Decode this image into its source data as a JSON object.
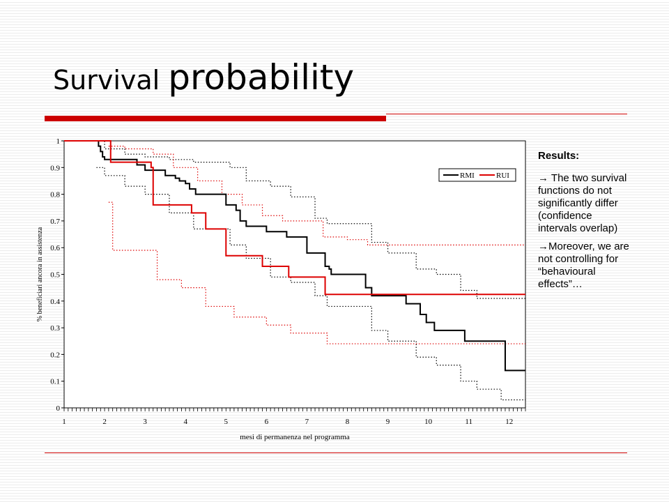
{
  "title": {
    "part1": "Surviva",
    "part2": "l ",
    "part3": "probability"
  },
  "side_notes": {
    "heading": "Results:",
    "items": [
      {
        "arrow": "→",
        "text": "The two survival functions do not significantly differ (confidence intervals overlap)"
      },
      {
        "arrow": "→",
        "text": "Moreover, we are not controlling for “behavioural effects”…"
      }
    ]
  },
  "colors": {
    "accent": "#cc0000",
    "rmi": "#000000",
    "rui": "#dd0000"
  },
  "chart_data": {
    "type": "line",
    "step": true,
    "xlabel": "mesi di permanenza nel programma",
    "ylabel": "% beneficiari ancora in assistenza",
    "xlim": [
      1,
      12.4
    ],
    "ylim": [
      0,
      1
    ],
    "xticks": [
      1,
      2,
      3,
      4,
      5,
      6,
      7,
      8,
      9,
      10,
      11,
      12
    ],
    "yticks": [
      0,
      0.1,
      0.2,
      0.3,
      0.4,
      0.5,
      0.6,
      0.7,
      0.8,
      0.9,
      1
    ],
    "legend": {
      "position": "top-right",
      "entries": [
        "RMI",
        "RUI"
      ]
    },
    "series": [
      {
        "name": "RMI",
        "color": "#000000",
        "style": "solid",
        "x": [
          1,
          1.8,
          1.85,
          1.9,
          1.95,
          2.0,
          2.05,
          2.1,
          2.2,
          2.3,
          2.5,
          2.8,
          3.0,
          3.3,
          3.5,
          3.65,
          3.75,
          3.85,
          4.0,
          4.1,
          4.25,
          4.6,
          5.0,
          5.25,
          5.35,
          5.5,
          6.0,
          6.5,
          6.65,
          7.0,
          7.35,
          7.45,
          7.5,
          7.55,
          7.6,
          8.3,
          8.45,
          8.6,
          9.35,
          9.45,
          9.65,
          9.8,
          9.95,
          10.15,
          10.25,
          10.9,
          11.75,
          11.9,
          12.3,
          12.4
        ],
        "y": [
          1,
          1,
          0.98,
          0.96,
          0.94,
          0.93,
          0.93,
          0.93,
          0.93,
          0.93,
          0.93,
          0.91,
          0.89,
          0.89,
          0.87,
          0.87,
          0.86,
          0.85,
          0.84,
          0.82,
          0.8,
          0.8,
          0.76,
          0.74,
          0.7,
          0.68,
          0.66,
          0.64,
          0.64,
          0.58,
          0.58,
          0.53,
          0.53,
          0.52,
          0.5,
          0.5,
          0.45,
          0.42,
          0.42,
          0.39,
          0.39,
          0.35,
          0.32,
          0.29,
          0.29,
          0.25,
          0.25,
          0.14,
          0.14,
          0.14
        ]
      },
      {
        "name": "RUI",
        "color": "#dd0000",
        "style": "solid",
        "x": [
          1,
          2.05,
          2.15,
          2.6,
          3.1,
          3.15,
          3.2,
          3.55,
          4.1,
          4.15,
          4.5,
          4.65,
          5.0,
          5.35,
          5.9,
          6.45,
          6.55,
          7.35,
          7.45,
          8.1,
          8.4,
          9.0,
          12.4
        ],
        "y": [
          1,
          1,
          0.92,
          0.92,
          0.92,
          0.9,
          0.76,
          0.76,
          0.76,
          0.73,
          0.67,
          0.67,
          0.57,
          0.57,
          0.53,
          0.53,
          0.49,
          0.49,
          0.425,
          0.425,
          0.425,
          0.425,
          0.425
        ]
      },
      {
        "name": "",
        "color": "#000000",
        "style": "dotted",
        "x": [
          1.8,
          2.0,
          2.5,
          3.0,
          3.6,
          4.2,
          5.1,
          5.5,
          6.1,
          6.6,
          7.2,
          7.5,
          8.6,
          9.0,
          9.7,
          10.2,
          10.8,
          11.2,
          12.4
        ],
        "y": [
          1,
          0.97,
          0.95,
          0.94,
          0.93,
          0.92,
          0.9,
          0.85,
          0.83,
          0.79,
          0.71,
          0.69,
          0.62,
          0.58,
          0.52,
          0.5,
          0.44,
          0.41,
          0.41
        ]
      },
      {
        "name": "",
        "color": "#000000",
        "style": "dotted",
        "x": [
          1.8,
          2.0,
          2.5,
          3.0,
          3.6,
          4.2,
          5.1,
          5.5,
          6.1,
          6.6,
          7.2,
          7.5,
          8.6,
          9.0,
          9.7,
          10.2,
          10.8,
          11.2,
          11.8,
          12.4
        ],
        "y": [
          0.9,
          0.87,
          0.83,
          0.8,
          0.73,
          0.67,
          0.61,
          0.56,
          0.49,
          0.47,
          0.42,
          0.38,
          0.29,
          0.25,
          0.19,
          0.16,
          0.1,
          0.07,
          0.03,
          0.03
        ]
      },
      {
        "name": "",
        "color": "#dd0000",
        "style": "dotted",
        "x": [
          2.1,
          2.5,
          3.2,
          3.7,
          4.3,
          4.9,
          5.4,
          5.9,
          6.4,
          7.4,
          8.0,
          8.5,
          9.0,
          12.4
        ],
        "y": [
          0.98,
          0.97,
          0.95,
          0.9,
          0.85,
          0.8,
          0.76,
          0.72,
          0.7,
          0.64,
          0.63,
          0.61,
          0.61,
          0.61
        ]
      },
      {
        "name": "",
        "color": "#dd0000",
        "style": "dotted",
        "x": [
          2.1,
          2.2,
          2.8,
          3.3,
          3.9,
          4.5,
          5.2,
          6.0,
          6.6,
          7.5,
          8.1,
          8.5,
          12.4
        ],
        "y": [
          0.77,
          0.59,
          0.59,
          0.48,
          0.45,
          0.38,
          0.34,
          0.31,
          0.28,
          0.24,
          0.24,
          0.24,
          0.24
        ]
      }
    ]
  }
}
